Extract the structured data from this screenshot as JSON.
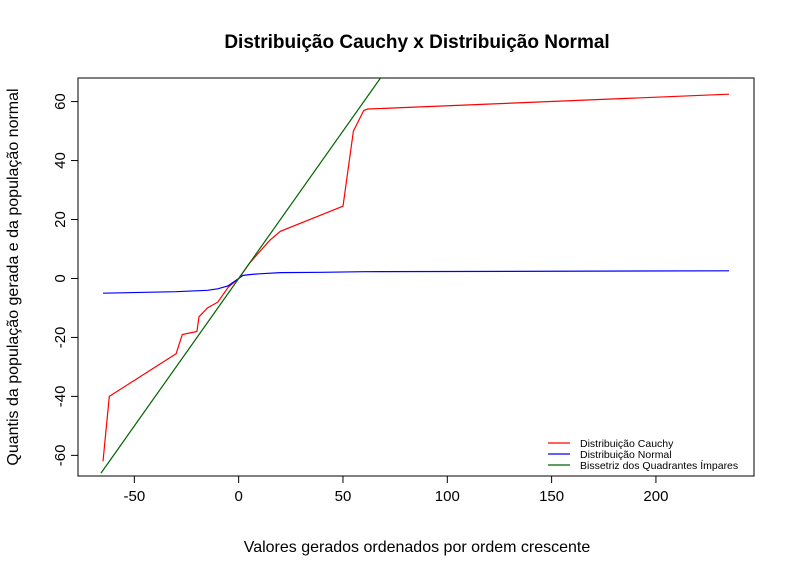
{
  "chart_data": {
    "type": "line",
    "title": "Distribuição Cauchy x Distribuição Normal",
    "xlabel": "Valores gerados ordenados por ordem crescente",
    "ylabel": "Quantis da população gerada e da população normal",
    "xlim": [
      -77,
      247
    ],
    "ylim": [
      -67,
      68
    ],
    "x_ticks": [
      -50,
      0,
      50,
      100,
      150,
      200
    ],
    "y_ticks": [
      -60,
      -40,
      -20,
      0,
      20,
      40,
      60
    ],
    "x_tick_labels": [
      "-50",
      "0",
      "50",
      "100",
      "150",
      "200"
    ],
    "y_tick_labels": [
      "-60",
      "-40",
      "-20",
      "0",
      "20",
      "40",
      "60"
    ],
    "grid": false,
    "legend_position": "bottom-right",
    "series": [
      {
        "name": "Distribuição Cauchy",
        "color": "#ff0000",
        "x": [
          -65,
          -62,
          -30,
          -27,
          -20,
          -19,
          -15,
          -10,
          -5,
          0,
          5,
          10,
          15,
          20,
          50,
          55,
          60,
          62,
          235
        ],
        "y": [
          -62,
          -40,
          -25.5,
          -19,
          -18,
          -13,
          -10,
          -8,
          -3,
          0,
          5,
          9,
          13,
          16,
          24.5,
          50,
          57,
          57.5,
          62.5
        ]
      },
      {
        "name": "Distribuição Normal",
        "color": "#0000ff",
        "x": [
          -65,
          -30,
          -15,
          -10,
          -5,
          -2,
          0,
          2,
          5,
          10,
          20,
          40,
          60,
          235
        ],
        "y": [
          -5,
          -4.5,
          -4,
          -3.5,
          -2.5,
          -1,
          0,
          1,
          1.3,
          1.6,
          2,
          2.1,
          2.3,
          2.6
        ]
      },
      {
        "name": "Bissetriz dos Quadrantes Ímpares",
        "color": "#006400",
        "x": [
          -66,
          68
        ],
        "y": [
          -66,
          68
        ]
      }
    ]
  }
}
